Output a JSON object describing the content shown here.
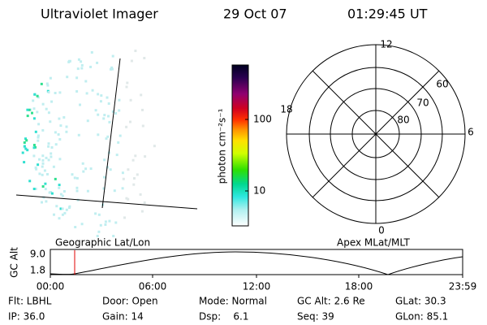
{
  "header": {
    "title": "Ultraviolet Imager",
    "date": "29 Oct 07",
    "time": "01:29:45 UT"
  },
  "colorbar": {
    "label": "photon cm⁻²s⁻¹",
    "ticks": [
      "100",
      "10"
    ]
  },
  "polar": {
    "mlt_labels": [
      "12",
      "0",
      "18",
      "6"
    ],
    "lat_labels": [
      "60",
      "70",
      "80"
    ]
  },
  "altitude_plot": {
    "ylabel": "GC Alt",
    "yticks": [
      "9.0",
      "1.8"
    ],
    "left_title": "Geographic Lat/Lon",
    "right_title": "Apex MLat/MLT",
    "xticks": [
      "00:00",
      "06:00",
      "12:00",
      "18:00",
      "23:59"
    ]
  },
  "info": [
    [
      "Flt: LBHL",
      "Door: Open",
      "Mode: Normal",
      "GC Alt: 2.6 Re",
      "GLat: 30.3"
    ],
    [
      "IP: 36.0",
      "Gain: 14",
      "Dsp:    6.1",
      "Seq: 39",
      "GLon: 85.1"
    ]
  ]
}
